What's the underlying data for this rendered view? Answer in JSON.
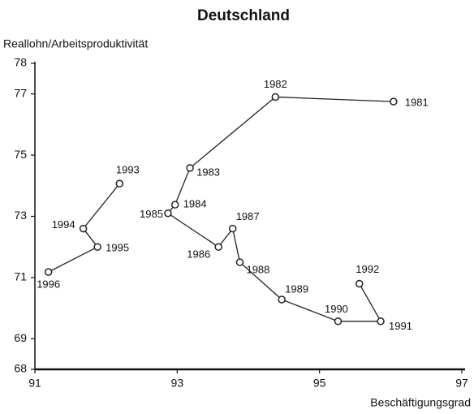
{
  "chart_data": {
    "type": "scatter",
    "title": "Deutschland",
    "y_label": "Reallohn/Arbeitsproduktivität",
    "x_label": "Beschäftigungsgrad",
    "xlim": [
      91,
      97
    ],
    "xticks": [
      91,
      93,
      95,
      97
    ],
    "ylim": [
      68,
      78
    ],
    "yticks": [
      68,
      69,
      71,
      73,
      75,
      77,
      78
    ],
    "connected": true,
    "series": [
      {
        "color": "#222222",
        "labels": [
          "1981",
          "1982",
          "1983",
          "1984",
          "1985",
          "1986",
          "1987",
          "1988",
          "1989",
          "1990",
          "1991",
          "1992"
        ],
        "x": [
          96.04,
          94.38,
          93.18,
          92.97,
          92.87,
          93.58,
          93.78,
          93.88,
          94.47,
          95.26,
          95.86,
          95.56
        ],
        "values": [
          76.75,
          76.9,
          74.58,
          73.38,
          73.1,
          72.0,
          72.6,
          71.5,
          70.28,
          69.57,
          69.57,
          70.8
        ]
      },
      {
        "color": "#222222",
        "labels": [
          "1993",
          "1994",
          "1995",
          "1996"
        ],
        "x": [
          92.19,
          91.68,
          91.88,
          91.19
        ],
        "values": [
          74.07,
          72.6,
          72.0,
          71.18
        ]
      }
    ]
  }
}
